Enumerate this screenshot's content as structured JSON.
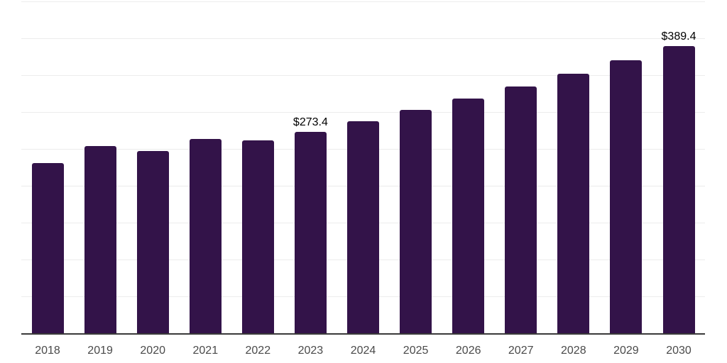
{
  "chart_data": {
    "type": "bar",
    "title": "",
    "xlabel": "",
    "ylabel": "",
    "categories": [
      "2018",
      "2019",
      "2020",
      "2021",
      "2022",
      "2023",
      "2024",
      "2025",
      "2026",
      "2027",
      "2028",
      "2029",
      "2030"
    ],
    "values": [
      231.0,
      253.8,
      247.1,
      263.9,
      261.7,
      273.4,
      287.6,
      302.5,
      318.2,
      334.6,
      352.0,
      370.2,
      389.4
    ],
    "data_labels": {
      "2023": "$273.4",
      "2030": "$389.4"
    },
    "ylim": [
      0,
      450
    ],
    "grid_step": 50,
    "grid": true,
    "legend": "none",
    "colors": {
      "bar": "#331349",
      "gridline": "#ececec",
      "axis_line": "#3a3a3a",
      "tick_label": "#4a4a4a",
      "data_label": "#000000",
      "background": "#ffffff"
    }
  }
}
